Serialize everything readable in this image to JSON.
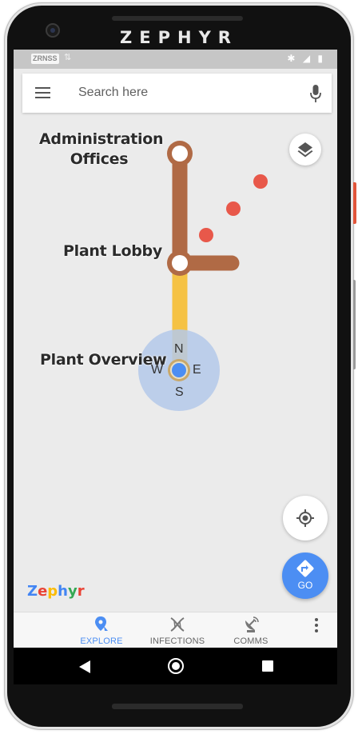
{
  "device": {
    "brand": "ZEPHYR",
    "icons": {
      "camera": "front-camera-icon",
      "top_speaker": "speaker-grille-icon",
      "bottom_speaker": "speaker-grille-icon"
    }
  },
  "statusbar": {
    "carrier": "ZRNSS",
    "icons": [
      "data-arrows-icon",
      "bluetooth-icon",
      "signal-icon",
      "battery-icon"
    ],
    "glyphs": {
      "arrows": "⇅",
      "bluetooth": "✱",
      "signal": "◢",
      "battery": "▮"
    }
  },
  "search": {
    "placeholder": "Search here",
    "menu_icon": "hamburger-menu-icon",
    "mic_icon": "microphone-icon"
  },
  "map": {
    "locations": [
      {
        "name": "Administration Offices",
        "lines": [
          "Administration",
          "Offices"
        ]
      },
      {
        "name": "Plant Lobby",
        "lines": [
          "Plant Lobby"
        ]
      },
      {
        "name": "Plant Overview",
        "lines": [
          "Plant Overview"
        ]
      }
    ],
    "compass": {
      "n": "N",
      "s": "S",
      "e": "E",
      "w": "W"
    },
    "colors": {
      "route_brown": "#b06a45",
      "route_yellow": "#f5c244",
      "hazard_red": "#e8584a",
      "user_blue": "#4c8ef3",
      "accuracy_halo": "#b4c9ea"
    },
    "hazard_count": 3,
    "layers_icon": "layers-icon",
    "locate_icon": "my-location-icon"
  },
  "go_button": {
    "label": "GO",
    "icon": "directions-icon"
  },
  "logo": {
    "text": "Zephyr",
    "letters": [
      "Z",
      "e",
      "p",
      "h",
      "y",
      "r"
    ]
  },
  "bottom_nav": {
    "tabs": [
      {
        "label": "EXPLORE",
        "icon": "explore-pin-icon",
        "active": true
      },
      {
        "label": "INFECTIONS",
        "icon": "dna-icon",
        "active": false
      },
      {
        "label": "COMMS",
        "icon": "satellite-dish-icon",
        "active": false
      }
    ],
    "overflow_icon": "more-vert-icon"
  },
  "system_nav": {
    "back_icon": "back-icon",
    "home_icon": "home-icon",
    "recents_icon": "recents-icon"
  }
}
